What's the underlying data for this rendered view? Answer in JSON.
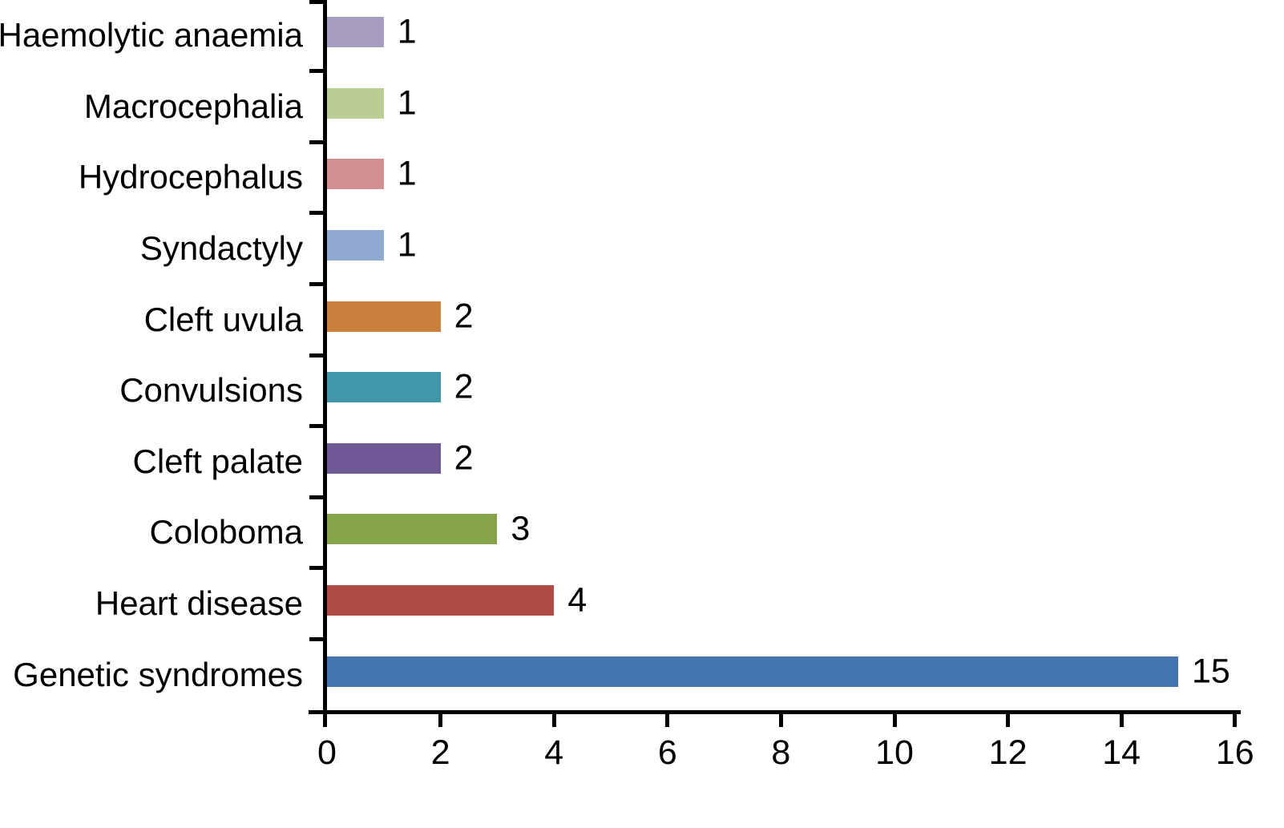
{
  "chart_data": {
    "type": "bar",
    "orientation": "horizontal",
    "title": "",
    "xlabel": "",
    "ylabel": "",
    "grid": false,
    "legend_position": "none",
    "xlim": [
      0,
      16
    ],
    "x_ticks": [
      "0",
      "2",
      "4",
      "6",
      "8",
      "10",
      "12",
      "14",
      "16"
    ],
    "x_tick_values": [
      0,
      2,
      4,
      6,
      8,
      10,
      12,
      14,
      16
    ],
    "categories": [
      "Haemolytic anaemia",
      "Macrocephalia",
      "Hydrocephalus",
      "Syndactyly",
      "Cleft uvula",
      "Convulsions",
      "Cleft palate",
      "Coloboma",
      "Heart disease",
      "Genetic syndromes"
    ],
    "values": [
      1,
      1,
      1,
      1,
      2,
      2,
      2,
      3,
      4,
      15
    ],
    "value_labels": [
      "1",
      "1",
      "1",
      "1",
      "2",
      "2",
      "2",
      "3",
      "4",
      "15"
    ],
    "bar_colors": [
      "#A89CC1",
      "#BACD93",
      "#D18F8F",
      "#8FA9D0",
      "#C8803C",
      "#4196AA",
      "#705795",
      "#85A34B",
      "#AF4A46",
      "#4474AD"
    ],
    "axis_color": "#000000",
    "background_color": "#FFFFFF"
  }
}
